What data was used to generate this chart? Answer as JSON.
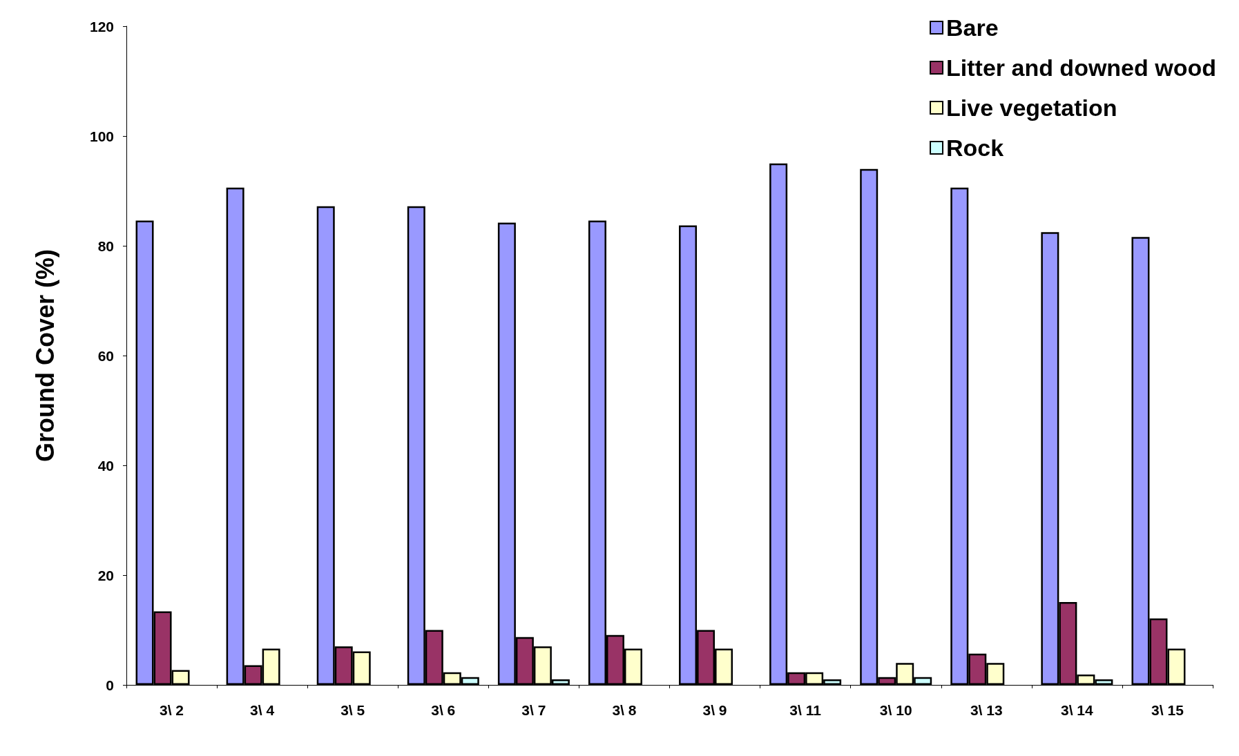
{
  "chart_data": {
    "type": "bar",
    "ylabel": "Ground Cover (%)",
    "categories": [
      "3\\ 2",
      "3\\ 4",
      "3\\ 5",
      "3\\ 6",
      "3\\ 7",
      "3\\ 8",
      "3\\ 9",
      "3\\ 11",
      "3\\ 10",
      "3\\ 13",
      "3\\ 14",
      "3\\ 15"
    ],
    "series": [
      {
        "name": "Bare",
        "color": "#9999ff",
        "values": [
          84.6,
          90.6,
          87.2,
          87.2,
          84.2,
          84.6,
          83.7,
          95.0,
          94.0,
          90.6,
          82.5,
          81.6
        ]
      },
      {
        "name": "Litter and downed wood",
        "color": "#993366",
        "values": [
          13.4,
          3.6,
          7.0,
          10.0,
          8.7,
          9.1,
          10.0,
          2.3,
          1.4,
          5.7,
          15.1,
          12.1
        ]
      },
      {
        "name": "Live vegetation",
        "color": "#ffffcc",
        "values": [
          2.7,
          6.6,
          6.1,
          2.3,
          7.0,
          6.6,
          6.6,
          2.3,
          4.0,
          4.0,
          1.9,
          6.6
        ]
      },
      {
        "name": "Rock",
        "color": "#ccffff",
        "values": [
          null,
          null,
          null,
          1.4,
          1.0,
          null,
          null,
          1.0,
          1.4,
          null,
          1.0,
          null
        ]
      }
    ],
    "ylim": [
      0,
      120
    ],
    "yticks": [
      0,
      20,
      40,
      60,
      80,
      100,
      120
    ],
    "grid": false,
    "legend": "top right"
  }
}
